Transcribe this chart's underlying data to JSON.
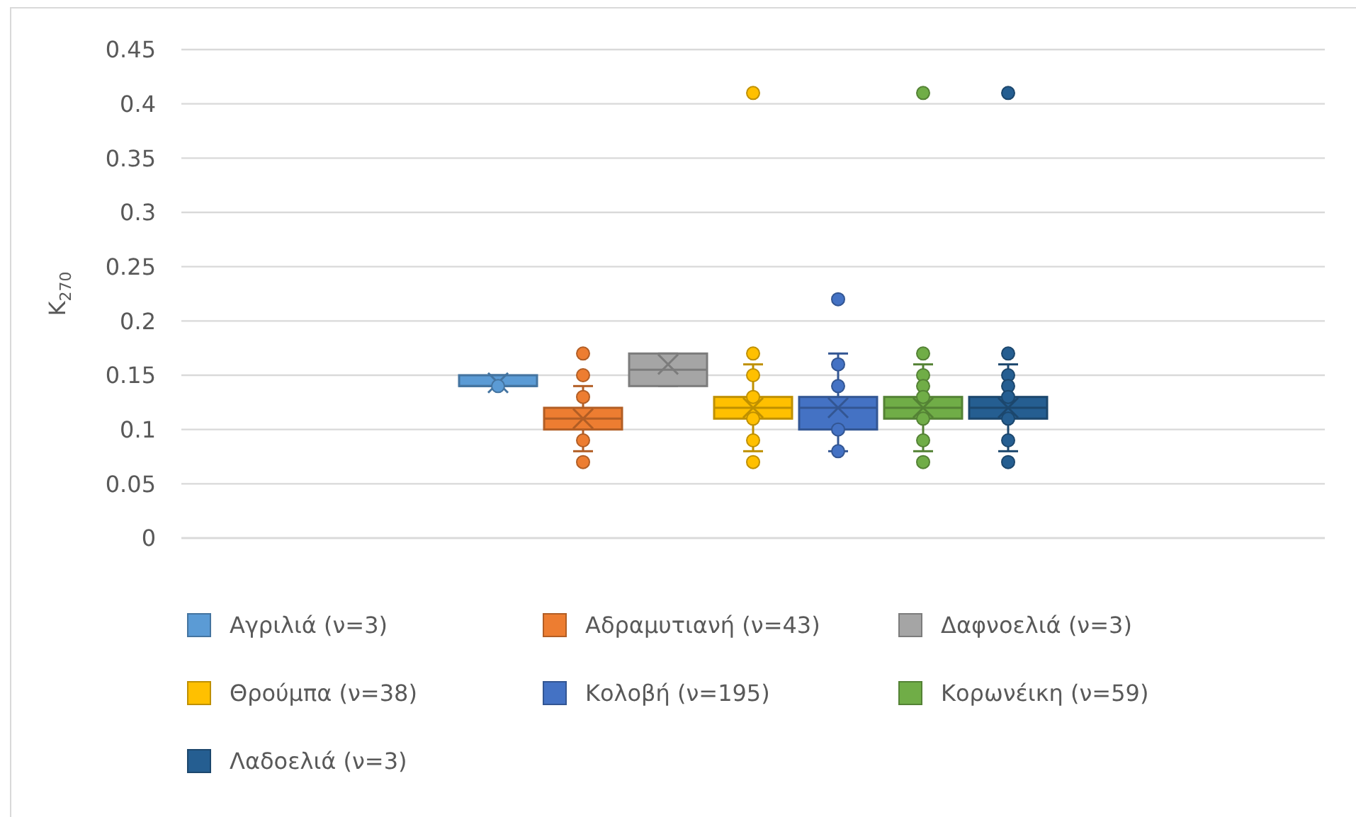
{
  "chart_data": {
    "type": "box",
    "ylabel": "K$_{270}$",
    "categories": [
      null
    ],
    "series": [
      {
        "name": "Αγριλιά (ν=3)",
        "color": "#5b9bd5",
        "boxes": [
          {
            "low": 0.14,
            "q1": 0.14,
            "median": 0.14,
            "q3": 0.15,
            "high": 0.15,
            "mean": 0.143,
            "outliers": [
              0.14
            ]
          }
        ]
      },
      {
        "name": "Αδραμυτιανή (ν=43)",
        "color": "#ed7d31",
        "boxes": [
          {
            "low": 0.08,
            "q1": 0.1,
            "median": 0.11,
            "q3": 0.12,
            "high": 0.14,
            "mean": 0.11,
            "outliers": [
              0.17,
              0.15,
              0.13,
              0.09,
              0.07
            ]
          }
        ]
      },
      {
        "name": "Δαφνοελιά (ν=3)",
        "color": "#a5a5a5",
        "boxes": [
          {
            "low": 0.14,
            "q1": 0.14,
            "median": 0.155,
            "q3": 0.17,
            "high": 0.17,
            "mean": 0.16
          }
        ]
      },
      {
        "name": "Θρούμπα (ν=38)",
        "color": "#ffc000",
        "boxes": [
          {
            "low": 0.08,
            "q1": 0.11,
            "median": 0.12,
            "q3": 0.13,
            "high": 0.16,
            "mean": 0.12,
            "outliers": [
              0.41,
              0.17,
              0.15,
              0.13,
              0.11,
              0.09,
              0.07
            ]
          }
        ]
      },
      {
        "name": "Κολοβή (ν=195)",
        "color": "#4472c4",
        "boxes": [
          {
            "low": 0.08,
            "q1": 0.1,
            "median": 0.12,
            "q3": 0.13,
            "high": 0.17,
            "mean": 0.12,
            "outliers": [
              0.22,
              0.16,
              0.14,
              0.1,
              0.08
            ]
          }
        ]
      },
      {
        "name": "Κορωνέικη (ν=59)",
        "color": "#70ad47",
        "boxes": [
          {
            "low": 0.08,
            "q1": 0.11,
            "median": 0.12,
            "q3": 0.13,
            "high": 0.16,
            "mean": 0.12,
            "outliers": [
              0.41,
              0.17,
              0.15,
              0.14,
              0.13,
              0.11,
              0.09,
              0.07
            ]
          }
        ]
      },
      {
        "name": "Λαδοελιά (ν=3)",
        "color": "#255e91",
        "boxes": [
          {
            "low": 0.08,
            "q1": 0.11,
            "median": 0.12,
            "q3": 0.13,
            "high": 0.16,
            "mean": 0.12,
            "outliers": [
              0.41,
              0.17,
              0.15,
              0.14,
              0.13,
              0.11,
              0.09,
              0.07
            ]
          }
        ]
      }
    ],
    "ylim": [
      0,
      0.45
    ],
    "yticks": [
      0,
      0.05,
      0.1,
      0.15,
      0.2,
      0.25,
      0.3,
      0.35,
      0.4,
      0.45
    ],
    "grid": "y",
    "legend": "bottom",
    "tick_labels": "y",
    "marker": "circle"
  }
}
